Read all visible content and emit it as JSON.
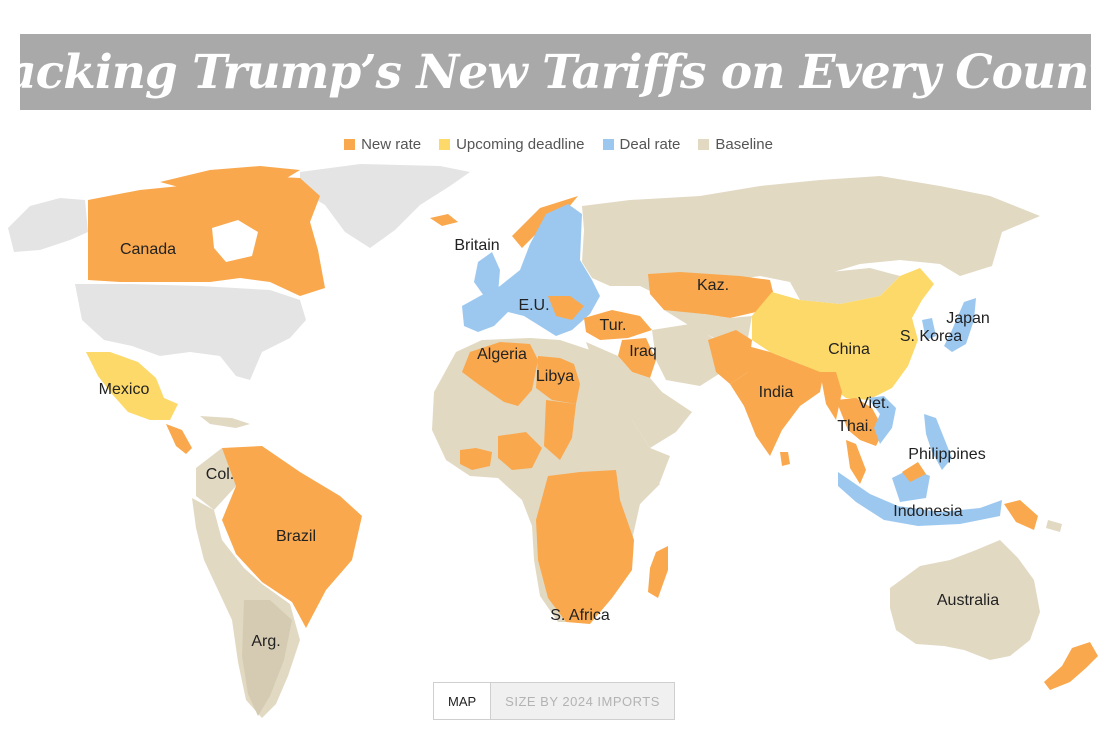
{
  "title": "Tracking Trump’s New Tariffs on Every Country",
  "legend": [
    {
      "label": "New rate",
      "color": "#f9a84d"
    },
    {
      "label": "Upcoming deadline",
      "color": "#fcd968"
    },
    {
      "label": "Deal rate",
      "color": "#9cc8f0"
    },
    {
      "label": "Baseline",
      "color": "#e2d9c3"
    }
  ],
  "no_data_color": "#e4e4e4",
  "country_labels": {
    "canada": "Canada",
    "britain": "Britain",
    "eu": "E.U.",
    "kaz": "Kaz.",
    "japan": "Japan",
    "skorea": "S. Korea",
    "china": "China",
    "tur": "Tur.",
    "iraq": "Iraq",
    "algeria": "Algeria",
    "libya": "Libya",
    "mexico": "Mexico",
    "india": "India",
    "viet": "Viet.",
    "thai": "Thai.",
    "philippines": "Philippines",
    "col": "Col.",
    "brazil": "Brazil",
    "indonesia": "Indonesia",
    "safrica": "S. Africa",
    "australia": "Australia",
    "arg": "Arg."
  },
  "view_toggle": {
    "map": "MAP",
    "size": "SIZE BY 2024 IMPORTS",
    "selected": "MAP"
  }
}
